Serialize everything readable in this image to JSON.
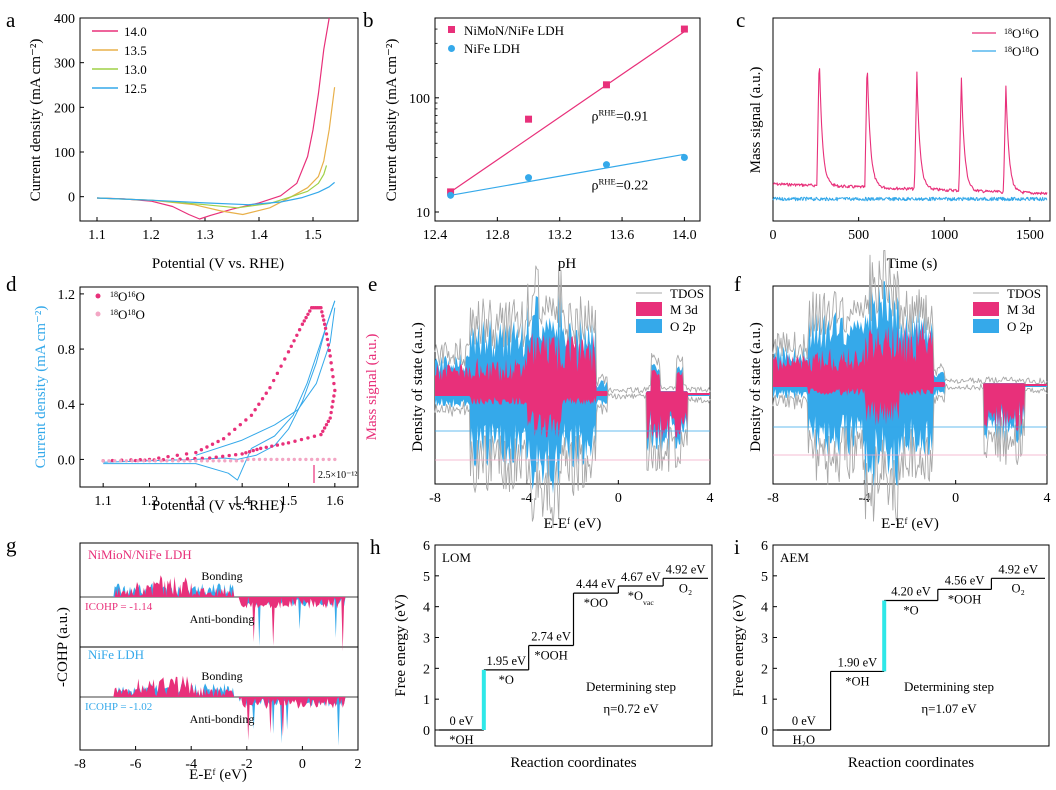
{
  "figure": {
    "panel_letters": [
      "a",
      "b",
      "c",
      "d",
      "e",
      "f",
      "g",
      "h",
      "i"
    ]
  },
  "colors": {
    "pink": "#e8307a",
    "orange": "#e8b04a",
    "green": "#9fd147",
    "blue": "#35a9ea",
    "lightpink": "#f3a6c4",
    "gray": "#a9a9a9",
    "cyan": "#2ee8e8"
  },
  "chart_data": [
    {
      "panel": "a",
      "type": "line",
      "xlabel": "Potential (V vs. RHE)",
      "ylabel": "Current density (mA cm⁻²)",
      "xlim": [
        1.1,
        1.55
      ],
      "ylim": [
        -50,
        400
      ],
      "xticks": [
        "1.1",
        "1.2",
        "1.3",
        "1.4",
        "1.5"
      ],
      "yticks": [
        "0",
        "100",
        "200",
        "300",
        "400"
      ],
      "legend_position": "top-left",
      "series": [
        {
          "name": "14.0",
          "color": "#e8307a",
          "x": [
            1.1,
            1.15,
            1.2,
            1.24,
            1.27,
            1.29,
            1.31,
            1.35,
            1.4,
            1.44,
            1.47,
            1.49,
            1.5,
            1.51,
            1.52,
            1.53
          ],
          "y": [
            -3,
            -5,
            -10,
            -22,
            -40,
            -50,
            -42,
            -28,
            -14,
            2,
            30,
            90,
            150,
            230,
            330,
            400
          ]
        },
        {
          "name": "13.5",
          "color": "#e8b04a",
          "x": [
            1.1,
            1.2,
            1.28,
            1.33,
            1.37,
            1.42,
            1.46,
            1.49,
            1.51,
            1.52,
            1.53,
            1.54
          ],
          "y": [
            -3,
            -8,
            -18,
            -32,
            -40,
            -25,
            0,
            20,
            45,
            80,
            150,
            245
          ]
        },
        {
          "name": "13.0",
          "color": "#9fd147",
          "x": [
            1.1,
            1.2,
            1.3,
            1.36,
            1.42,
            1.46,
            1.49,
            1.51,
            1.52,
            1.525
          ],
          "y": [
            -3,
            -8,
            -18,
            -25,
            -15,
            0,
            12,
            30,
            50,
            70
          ]
        },
        {
          "name": "12.5",
          "color": "#35a9ea",
          "x": [
            1.1,
            1.2,
            1.3,
            1.38,
            1.44,
            1.48,
            1.51,
            1.53,
            1.54
          ],
          "y": [
            -3,
            -8,
            -14,
            -18,
            -12,
            -2,
            10,
            22,
            32
          ]
        }
      ]
    },
    {
      "panel": "b",
      "type": "scatter",
      "xlabel": "pH",
      "ylabel": "Current density (mA cm⁻²)",
      "xlim": [
        12.4,
        14.1
      ],
      "ylim": [
        10,
        500
      ],
      "yscale": "log",
      "xticks": [
        "12.4",
        "12.8",
        "13.2",
        "13.6",
        "14.0"
      ],
      "yticks": [
        "10",
        "100"
      ],
      "legend_position": "top-left",
      "series": [
        {
          "name": "NiMoN/NiFe LDH",
          "color": "#e8307a",
          "marker": "square",
          "x": [
            12.5,
            13.0,
            13.5,
            14.0
          ],
          "y": [
            15,
            65,
            130,
            400
          ],
          "fit": [
            [
              12.5,
              15
            ],
            [
              14.0,
              380
            ]
          ]
        },
        {
          "name": "NiFe LDH",
          "color": "#35a9ea",
          "marker": "circle",
          "x": [
            12.5,
            13.0,
            13.5,
            14.0
          ],
          "y": [
            14,
            20,
            26,
            30
          ],
          "fit": [
            [
              12.5,
              14
            ],
            [
              14.0,
              32
            ]
          ]
        }
      ],
      "annotations": [
        {
          "base": "ρ",
          "sup": "RHE",
          "rest": "=0.91",
          "at": [
            13.5,
            70
          ]
        },
        {
          "base": "ρ",
          "sup": "RHE",
          "rest": "=0.22",
          "at": [
            13.5,
            17
          ]
        }
      ]
    },
    {
      "panel": "c",
      "type": "line",
      "xlabel": "Time (s)",
      "ylabel": "Mass signal (a.u.)",
      "xlim": [
        0,
        1600
      ],
      "ylim": [
        0,
        1
      ],
      "xticks": [
        "0",
        "500",
        "1000",
        "1500"
      ],
      "legend_position": "top-right",
      "series": [
        {
          "name": "¹⁸O¹⁶O",
          "color": "#e8307a",
          "peaks_at": [
            270,
            550,
            840,
            1100,
            1360
          ]
        },
        {
          "name": "¹⁸O¹⁸O",
          "color": "#35a9ea"
        }
      ]
    },
    {
      "panel": "d",
      "type": "line",
      "xlabel": "Potential (V vs. RHE)",
      "ylabel_left": "Current density (mA cm⁻²)",
      "ylabel_right": "Mass signal (a.u.)",
      "xlim": [
        1.05,
        1.65
      ],
      "ylim": [
        -0.2,
        1.25
      ],
      "xticks": [
        "1.1",
        "1.2",
        "1.3",
        "1.4",
        "1.5",
        "1.6"
      ],
      "yticks": [
        "0.0",
        "0.4",
        "0.8",
        "1.2"
      ],
      "scale_bar": "2.5×10⁻¹²",
      "legend_position": "top-left",
      "series": [
        {
          "name": "¹⁸O¹⁶O",
          "color": "#e8307a",
          "marker": "dot"
        },
        {
          "name": "¹⁸O¹⁸O",
          "color": "#f3a6c4",
          "marker": "dot"
        }
      ]
    },
    {
      "panel": "e",
      "type": "area",
      "xlabel": "E-Eᶠ (eV)",
      "ylabel": "Density of state (a.u.)",
      "xlim": [
        -8,
        4
      ],
      "xticks": [
        "-8",
        "-4",
        "0",
        "4"
      ],
      "legend_position": "top-right",
      "series": [
        {
          "name": "TDOS",
          "color": "#a9a9a9"
        },
        {
          "name": "M 3d",
          "color": "#e8307a"
        },
        {
          "name": "O 2p",
          "color": "#35a9ea"
        }
      ]
    },
    {
      "panel": "f",
      "type": "area",
      "xlabel": "E-Eᶠ (eV)",
      "ylabel": "Density of state (a.u.)",
      "xlim": [
        -8,
        4
      ],
      "xticks": [
        "-8",
        "-4",
        "0",
        "4"
      ],
      "legend_position": "top-right",
      "series": [
        {
          "name": "TDOS",
          "color": "#a9a9a9"
        },
        {
          "name": "M 3d",
          "color": "#e8307a"
        },
        {
          "name": "O 2p",
          "color": "#35a9ea"
        }
      ]
    },
    {
      "panel": "g",
      "type": "area",
      "xlabel": "E-Eᶠ (eV)",
      "ylabel": "-COHP (a.u.)",
      "xlim": [
        -8,
        2
      ],
      "xticks": [
        "-8",
        "-6",
        "-4",
        "-2",
        "0",
        "2"
      ],
      "subplots": [
        {
          "title": "NiMioN/NiFe LDH",
          "bonding": "Bonding",
          "antibonding": "Anti-bonding",
          "icohp": "ICOHP = -1.14"
        },
        {
          "title": "NiFe LDH",
          "bonding": "Bonding",
          "antibonding": "Anti-bonding",
          "icohp": "ICOHP = -1.02"
        }
      ]
    },
    {
      "panel": "h",
      "type": "step",
      "title": "LOM",
      "xlabel": "Reaction coordinates",
      "ylabel": "Free energy (eV)",
      "ylim": [
        0,
        6
      ],
      "yticks": [
        "0",
        "1",
        "2",
        "3",
        "4",
        "5",
        "6"
      ],
      "steps": [
        {
          "energy": 0,
          "value_label": "0 eV",
          "species": "*OH"
        },
        {
          "energy": 1.95,
          "value_label": "1.95 eV",
          "species": "*O"
        },
        {
          "energy": 2.74,
          "value_label": "2.74 eV",
          "species": "*OOH"
        },
        {
          "energy": 4.44,
          "value_label": "4.44 eV",
          "species": "*OO"
        },
        {
          "energy": 4.67,
          "value_label": "4.67 eV",
          "species": "*O",
          "species_sub": "vac"
        },
        {
          "energy": 4.92,
          "value_label": "4.92 eV",
          "species": "O₂"
        }
      ],
      "determining_step_index": 1,
      "note1": "Determining step",
      "note2": "η=0.72 eV"
    },
    {
      "panel": "i",
      "type": "step",
      "title": "AEM",
      "xlabel": "Reaction coordinates",
      "ylabel": "Free energy (eV)",
      "ylim": [
        0,
        6
      ],
      "yticks": [
        "0",
        "1",
        "2",
        "3",
        "4",
        "5",
        "6"
      ],
      "steps": [
        {
          "energy": 0,
          "value_label": "0 eV",
          "species": "H₂O"
        },
        {
          "energy": 1.9,
          "value_label": "1.90 eV",
          "species": "*OH"
        },
        {
          "energy": 4.2,
          "value_label": "4.20 eV",
          "species": "*O"
        },
        {
          "energy": 4.56,
          "value_label": "4.56 eV",
          "species": "*OOH"
        },
        {
          "energy": 4.92,
          "value_label": "4.92 eV",
          "species": "O₂"
        }
      ],
      "determining_step_index": 2,
      "note1": "Determining step",
      "note2": "η=1.07 eV"
    }
  ]
}
